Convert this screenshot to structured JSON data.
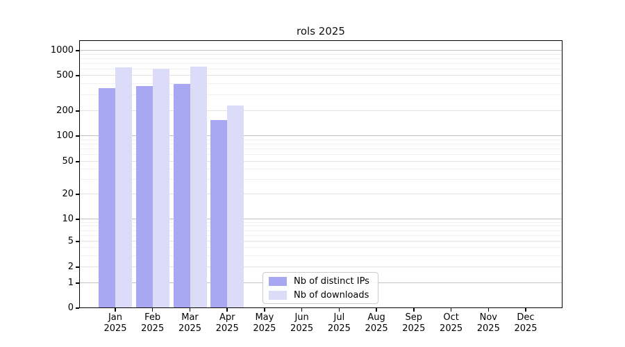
{
  "chart_data": {
    "type": "bar",
    "title": "rols 2025",
    "year": "2025",
    "months": [
      "Jan",
      "Feb",
      "Mar",
      "Apr",
      "May",
      "Jun",
      "Jul",
      "Aug",
      "Sep",
      "Oct",
      "Nov",
      "Dec"
    ],
    "series": [
      {
        "name": "Nb of distinct IPs",
        "color": "#a8a8f2",
        "values": [
          360,
          380,
          400,
          155,
          null,
          null,
          null,
          null,
          null,
          null,
          null,
          null
        ]
      },
      {
        "name": "Nb of downloads",
        "color": "#dcdcf8",
        "values": [
          630,
          605,
          640,
          230,
          null,
          null,
          null,
          null,
          null,
          null,
          null,
          null
        ]
      }
    ],
    "y_ticks": [
      0,
      1,
      2,
      5,
      10,
      20,
      50,
      100,
      200,
      500,
      1000
    ],
    "y_scale": "symlog",
    "ylim": [
      0,
      1300
    ],
    "grid": true,
    "legend_position": "lower center",
    "colors": {
      "major_gridline": "#c2c2c2",
      "labeled_gridline": "#e3e3e3",
      "minor_gridline": "#f0f0f0",
      "axis": "#000000"
    }
  }
}
